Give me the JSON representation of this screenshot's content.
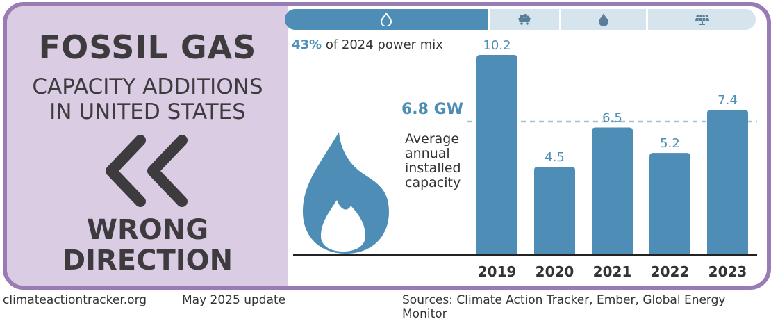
{
  "panel": {
    "title": "FOSSIL GAS",
    "subtitle_line1": "CAPACITY ADDITIONS",
    "subtitle_line2": "IN UNITED STATES",
    "verdict_line1": "WRONG",
    "verdict_line2": "DIRECTION",
    "direction_icon": "double-chevron-left-icon"
  },
  "tabs": [
    {
      "icon": "flame-icon",
      "active": true
    },
    {
      "icon": "coal-cart-icon",
      "active": false
    },
    {
      "icon": "oil-drop-icon",
      "active": false
    },
    {
      "icon": "solar-panel-icon",
      "active": false
    }
  ],
  "mix_note": {
    "percent": "43%",
    "text": " of 2024 power mix"
  },
  "average": {
    "value_label": "6.8 GW",
    "line1": "Average",
    "line2": "annual",
    "line3": "installed",
    "line4": "capacity"
  },
  "colors": {
    "bar": "#4d8db6",
    "avg_line": "#9cc3dc",
    "left_panel": "#d9cce3",
    "border": "#9a7cb5"
  },
  "chart_data": {
    "type": "bar",
    "title": "Fossil gas capacity additions in United States",
    "categories": [
      "2019",
      "2020",
      "2021",
      "2022",
      "2023"
    ],
    "values": [
      10.2,
      4.5,
      6.5,
      5.2,
      7.4
    ],
    "value_labels": [
      "10.2",
      "4.5",
      "6.5",
      "5.2",
      "7.4"
    ],
    "average": 6.8,
    "unit": "GW",
    "ylim": [
      0,
      10.2
    ]
  },
  "footer": {
    "site": "climateactiontracker.org",
    "update": "May 2025 update",
    "sources": "Sources: Climate Action Tracker, Ember, Global Energy Monitor"
  }
}
